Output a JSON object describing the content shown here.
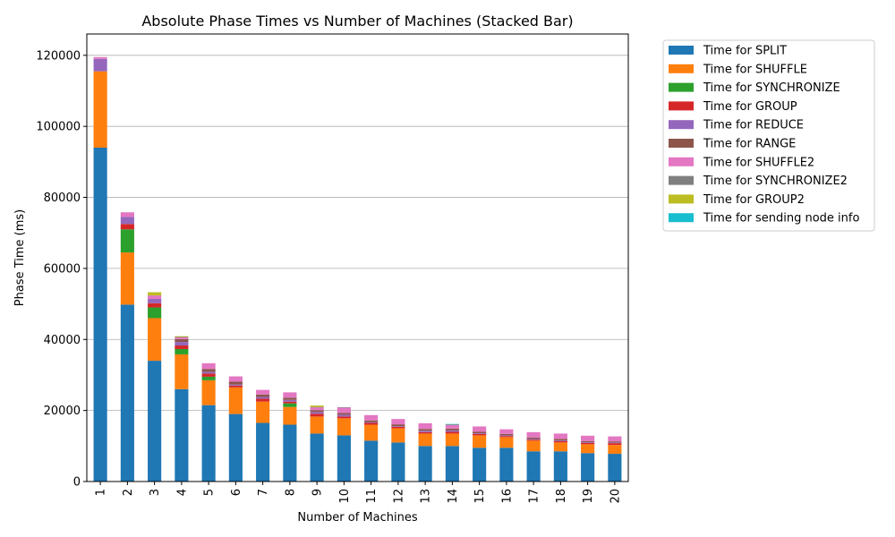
{
  "chart_data": {
    "type": "bar",
    "stacked": true,
    "title": "Absolute Phase Times vs Number of Machines (Stacked Bar)",
    "xlabel": "Number of Machines",
    "ylabel": "Phase Time (ms)",
    "ylim": [
      0,
      126000
    ],
    "yticks": [
      0,
      20000,
      40000,
      60000,
      80000,
      100000,
      120000
    ],
    "grid": "y",
    "legend_position": "outside-right",
    "categories": [
      "1",
      "2",
      "3",
      "4",
      "5",
      "6",
      "7",
      "8",
      "9",
      "10",
      "11",
      "12",
      "13",
      "14",
      "15",
      "16",
      "17",
      "18",
      "19",
      "20"
    ],
    "series": [
      {
        "name": "Time for SPLIT",
        "color": "#1f77b4",
        "values": [
          94000,
          49800,
          34000,
          26000,
          21500,
          19000,
          16500,
          16000,
          13500,
          13000,
          11500,
          11000,
          10000,
          10000,
          9500,
          9500,
          8500,
          8500,
          8000,
          7800
        ]
      },
      {
        "name": "Time for SHUFFLE",
        "color": "#ff7f0e",
        "values": [
          21500,
          14700,
          12000,
          9800,
          7000,
          7500,
          6000,
          5000,
          4800,
          4800,
          4500,
          4000,
          3500,
          3500,
          3500,
          3000,
          3000,
          2500,
          2500,
          2500
        ]
      },
      {
        "name": "Time for SYNCHRONIZE",
        "color": "#2ca02c",
        "values": [
          0,
          6500,
          3000,
          1500,
          1000,
          0,
          0,
          1000,
          0,
          0,
          0,
          0,
          0,
          0,
          0,
          0,
          0,
          0,
          0,
          0
        ]
      },
      {
        "name": "Time for GROUP",
        "color": "#d62728",
        "values": [
          0,
          1500,
          1200,
          1000,
          900,
          500,
          800,
          500,
          800,
          500,
          500,
          400,
          400,
          500,
          400,
          300,
          300,
          400,
          400,
          500
        ]
      },
      {
        "name": "Time for REDUCE",
        "color": "#9467bd",
        "values": [
          3500,
          2000,
          1200,
          1000,
          500,
          300,
          500,
          500,
          500,
          500,
          200,
          200,
          400,
          400,
          200,
          200,
          200,
          200,
          200,
          200
        ]
      },
      {
        "name": "Time for RANGE",
        "color": "#8c564b",
        "values": [
          0,
          0,
          0,
          800,
          800,
          800,
          700,
          600,
          500,
          500,
          500,
          500,
          500,
          500,
          400,
          400,
          400,
          400,
          300,
          300
        ]
      },
      {
        "name": "Time for SHUFFLE2",
        "color": "#e377c2",
        "values": [
          500,
          1300,
          1000,
          500,
          1600,
          1500,
          1300,
          1500,
          800,
          1500,
          1500,
          1500,
          1600,
          1000,
          1500,
          1300,
          1500,
          1500,
          1500,
          1400
        ]
      },
      {
        "name": "Time for SYNCHRONIZE2",
        "color": "#7f7f7f",
        "values": [
          0,
          0,
          0,
          100,
          0,
          0,
          0,
          0,
          100,
          100,
          0,
          0,
          0,
          200,
          0,
          0,
          0,
          0,
          0,
          0
        ]
      },
      {
        "name": "Time for GROUP2",
        "color": "#bcbd22",
        "values": [
          0,
          0,
          900,
          200,
          0,
          0,
          0,
          0,
          400,
          0,
          0,
          0,
          0,
          0,
          0,
          0,
          0,
          0,
          0,
          0
        ]
      },
      {
        "name": "Time for sending node info",
        "color": "#17becf",
        "values": [
          0,
          0,
          0,
          0,
          0,
          0,
          0,
          0,
          0,
          0,
          0,
          0,
          0,
          100,
          0,
          0,
          0,
          0,
          0,
          0
        ]
      }
    ]
  }
}
